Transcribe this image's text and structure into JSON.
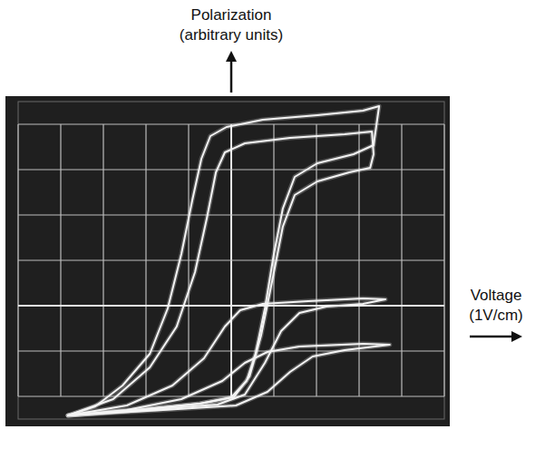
{
  "chart_data": {
    "type": "line",
    "y_label": [
      "Polarization",
      "(arbitrary units)"
    ],
    "x_label": [
      "Voltage",
      "(1V/cm)"
    ],
    "xlim": [
      -5,
      5
    ],
    "ylim": [
      -2.5,
      4.5
    ],
    "xticks": [
      -5,
      -4,
      -3,
      -2,
      -1,
      0,
      1,
      2,
      3,
      4,
      5
    ],
    "yticks": [
      -2,
      -1,
      0,
      1,
      2,
      3,
      4
    ],
    "grid": true,
    "tick_labels": false,
    "color": "#f4f4f4",
    "series": [
      {
        "color": "#f4f4f4",
        "x": [
          -3.83,
          -2.23,
          -0.74,
          0,
          0.36,
          0.57,
          0.79,
          1.0,
          1.21,
          1.49,
          2.02,
          2.87,
          3.34,
          3.47,
          3.09,
          2.02,
          0.74,
          -0.11,
          -0.49,
          -0.7,
          -0.91,
          -1.17,
          -1.49,
          -1.91,
          -2.55,
          -3.19,
          -3.83
        ],
        "values": [
          -2.42,
          -2.3,
          -2.16,
          -2.02,
          -1.66,
          -1.06,
          -0.06,
          1.14,
          2.14,
          2.84,
          3.14,
          3.34,
          3.54,
          4.4,
          4.3,
          4.2,
          4.1,
          3.94,
          3.74,
          3.24,
          2.34,
          1.14,
          -0.06,
          -1.06,
          -1.76,
          -2.22,
          -2.42
        ]
      },
      {
        "color": "#f4f4f4",
        "x": [
          -3.83,
          -2.23,
          -0.74,
          0.06,
          0.43,
          0.7,
          0.96,
          1.21,
          1.49,
          2.02,
          2.77,
          3.26,
          3.34,
          3.3,
          2.66,
          1.38,
          0.32,
          -0.15,
          -0.36,
          -0.57,
          -0.85,
          -1.28,
          -1.91,
          -2.77,
          -3.83
        ],
        "values": [
          -2.42,
          -2.3,
          -2.16,
          -2.02,
          -1.56,
          -0.66,
          0.54,
          1.74,
          2.44,
          2.74,
          2.94,
          3.04,
          3.34,
          3.84,
          3.78,
          3.7,
          3.58,
          3.38,
          2.94,
          1.94,
          0.74,
          -0.46,
          -1.36,
          -2.06,
          -2.42
        ]
      },
      {
        "color": "#f4f4f4",
        "x": [
          -3.83,
          -2.02,
          -0.32,
          0.32,
          0.79,
          1.17,
          1.6,
          2.23,
          3.09,
          3.62,
          3.09,
          1.81,
          0.74,
          0.21,
          -0.15,
          -0.64,
          -1.38,
          -2.45,
          -3.83
        ],
        "values": [
          -2.42,
          -2.3,
          -2.18,
          -1.96,
          -1.26,
          -0.56,
          -0.16,
          -0.02,
          0.04,
          0.14,
          0.16,
          0.1,
          0.04,
          -0.1,
          -0.46,
          -1.16,
          -1.76,
          -2.2,
          -2.42
        ]
      },
      {
        "color": "#f4f4f4",
        "x": [
          -3.83,
          -1.6,
          0.11,
          0.85,
          1.38,
          1.91,
          2.66,
          3.72,
          3.09,
          1.6,
          0.85,
          0.32,
          -0.21,
          -1.17,
          -2.45,
          -3.83
        ],
        "values": [
          -2.42,
          -2.3,
          -2.2,
          -1.9,
          -1.46,
          -1.12,
          -0.98,
          -0.86,
          -0.84,
          -0.9,
          -1.02,
          -1.26,
          -1.66,
          -2.06,
          -2.3,
          -2.42
        ]
      }
    ]
  }
}
